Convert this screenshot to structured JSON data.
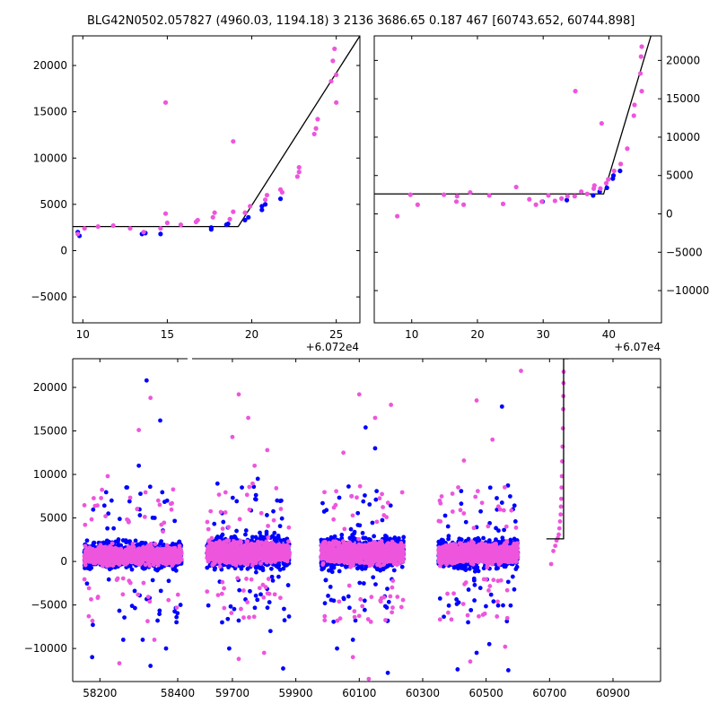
{
  "title": "BLG42N0502.057827 (4960.03, 1194.18)   3 2136 3686.65 0.187 467 [60743.652, 60744.898]",
  "colors": {
    "blue": "#0000ff",
    "pink": "#ee55dd",
    "model": "#000000"
  },
  "chart_data": [
    {
      "type": "scatter",
      "panel": "top-left",
      "xlim": [
        60729.4,
        60746.4
      ],
      "ylim": [
        -7800,
        23200
      ],
      "x_offset_label": "+6.072e4",
      "xticks": [
        60730,
        60735,
        60740,
        60745
      ],
      "xtick_labels": [
        "10",
        "15",
        "20",
        "25"
      ],
      "yticks": [
        -5000,
        0,
        5000,
        10000,
        15000,
        20000
      ],
      "ytick_labels": [
        "−5000",
        "0",
        "5000",
        "10000",
        "15000",
        "20000"
      ],
      "model_line": {
        "x": [
          60729.4,
          60739.2,
          60746.4
        ],
        "y": [
          2600,
          2600,
          23200
        ]
      },
      "series": [
        {
          "color": "blue",
          "points": [
            [
              60729.7,
              2000
            ],
            [
              60729.8,
              1600
            ],
            [
              60733.5,
              1800
            ],
            [
              60733.7,
              1900
            ],
            [
              60734.6,
              1800
            ],
            [
              60737.6,
              2300
            ],
            [
              60737.6,
              2500
            ],
            [
              60738.5,
              2800
            ],
            [
              60738.6,
              2900
            ],
            [
              60739.6,
              3300
            ],
            [
              60739.8,
              3600
            ],
            [
              60740.6,
              4800
            ],
            [
              60740.6,
              4400
            ],
            [
              60740.8,
              5000
            ],
            [
              60741.7,
              5600
            ]
          ]
        },
        {
          "color": "pink",
          "points": [
            [
              60729.7,
              1800
            ],
            [
              60730.1,
              2400
            ],
            [
              60730.9,
              2600
            ],
            [
              60731.8,
              2700
            ],
            [
              60732.8,
              2400
            ],
            [
              60733.6,
              2000
            ],
            [
              60734.6,
              2400
            ],
            [
              60734.9,
              16000
            ],
            [
              60734.9,
              4000
            ],
            [
              60735.0,
              3000
            ],
            [
              60735.8,
              2800
            ],
            [
              60736.7,
              3100
            ],
            [
              60736.8,
              3300
            ],
            [
              60737.7,
              3600
            ],
            [
              60737.8,
              4100
            ],
            [
              60738.7,
              3400
            ],
            [
              60738.9,
              11800
            ],
            [
              60738.9,
              4200
            ],
            [
              60739.6,
              4100
            ],
            [
              60739.9,
              4800
            ],
            [
              60740.8,
              5500
            ],
            [
              60740.9,
              6000
            ],
            [
              60741.7,
              6600
            ],
            [
              60741.8,
              6300
            ],
            [
              60742.7,
              8000
            ],
            [
              60742.8,
              9000
            ],
            [
              60742.8,
              8500
            ],
            [
              60743.7,
              12600
            ],
            [
              60743.8,
              13200
            ],
            [
              60743.9,
              14200
            ],
            [
              60744.7,
              18300
            ],
            [
              60744.8,
              20500
            ],
            [
              60744.9,
              21800
            ],
            [
              60745.0,
              16000
            ],
            [
              60745.0,
              19000
            ]
          ]
        }
      ]
    },
    {
      "type": "scatter",
      "panel": "top-right",
      "xlim": [
        60704.3,
        60748.0
      ],
      "ylim": [
        -14200,
        23200
      ],
      "x_offset_label": "+6.07e4",
      "xticks": [
        60710,
        60720,
        60730,
        60740
      ],
      "xtick_labels": [
        "10",
        "20",
        "30",
        "40"
      ],
      "yticks": [
        -10000,
        -5000,
        0,
        5000,
        10000,
        15000,
        20000
      ],
      "ytick_labels": [
        "−10000",
        "−5000",
        "0",
        "5000",
        "10000",
        "15000",
        "20000"
      ],
      "model_line": {
        "x": [
          60704.3,
          60739.2,
          60746.4
        ],
        "y": [
          2600,
          2600,
          23200
        ]
      },
      "series": [
        {
          "color": "blue",
          "points": [
            [
              60729.9,
              1600
            ],
            [
              60733.6,
              1800
            ],
            [
              60737.6,
              2400
            ],
            [
              60738.6,
              2900
            ],
            [
              60739.7,
              3400
            ],
            [
              60740.6,
              4600
            ],
            [
              60740.7,
              5000
            ],
            [
              60741.7,
              5600
            ]
          ]
        },
        {
          "color": "pink",
          "points": [
            [
              60707.8,
              -300
            ],
            [
              60709.8,
              2500
            ],
            [
              60710.9,
              1200
            ],
            [
              60714.9,
              2500
            ],
            [
              60716.8,
              1600
            ],
            [
              60716.9,
              2300
            ],
            [
              60717.9,
              1200
            ],
            [
              60718.9,
              2800
            ],
            [
              60721.8,
              2400
            ],
            [
              60723.9,
              1300
            ],
            [
              60725.9,
              3500
            ],
            [
              60727.9,
              1900
            ],
            [
              60728.9,
              1200
            ],
            [
              60729.8,
              1600
            ],
            [
              60730.8,
              2400
            ],
            [
              60731.8,
              1700
            ],
            [
              60732.8,
              2000
            ],
            [
              60733.7,
              2300
            ],
            [
              60734.8,
              2300
            ],
            [
              60734.9,
              16000
            ],
            [
              60735.8,
              2900
            ],
            [
              60736.7,
              2600
            ],
            [
              60737.7,
              3300
            ],
            [
              60737.8,
              3700
            ],
            [
              60738.7,
              3300
            ],
            [
              60738.9,
              11800
            ],
            [
              60739.6,
              4000
            ],
            [
              60739.9,
              4500
            ],
            [
              60740.8,
              5600
            ],
            [
              60741.8,
              6500
            ],
            [
              60742.8,
              8500
            ],
            [
              60743.8,
              12800
            ],
            [
              60743.9,
              14200
            ],
            [
              60744.8,
              18300
            ],
            [
              60744.9,
              20500
            ],
            [
              60745.0,
              21800
            ],
            [
              60745.0,
              16000
            ]
          ]
        }
      ]
    },
    {
      "type": "scatter",
      "panel": "bottom",
      "xlim": [
        58130,
        61050
      ],
      "ylim": [
        -13800,
        23300
      ],
      "broken_axis": {
        "x": 58430,
        "gap": 59570
      },
      "xticks": [
        58200,
        58400,
        59700,
        59900,
        60100,
        60300,
        60500,
        60700,
        60900
      ],
      "xtick_labels": [
        "58200",
        "58400",
        "59700",
        "59900",
        "60100",
        "60300",
        "60500",
        "60700",
        "60900"
      ],
      "yticks": [
        -10000,
        -5000,
        0,
        5000,
        10000,
        15000,
        20000
      ],
      "ytick_labels": [
        "−10000",
        "−5000",
        "0",
        "5000",
        "10000",
        "15000",
        "20000"
      ],
      "model_line": {
        "x": [
          60690,
          60744.2,
          60744.4,
          60760
        ],
        "y": [
          2600,
          2600,
          23300,
          23300
        ]
      },
      "seasons": [
        {
          "x0": 58160,
          "x1": 58410,
          "center": 700,
          "spread": 900
        },
        {
          "x0": 59620,
          "x1": 59880,
          "center": 1000,
          "spread": 1100
        },
        {
          "x0": 59980,
          "x1": 60240,
          "center": 1000,
          "spread": 1100
        },
        {
          "x0": 60350,
          "x1": 60600,
          "center": 900,
          "spread": 1000
        }
      ],
      "series": [
        {
          "color": "blue",
          "outliers": [
            [
              58320,
              20800
            ],
            [
              58355,
              16200
            ],
            [
              58300,
              11000
            ],
            [
              58230,
              7000
            ],
            [
              58270,
              8500
            ],
            [
              58180,
              -11000
            ],
            [
              58260,
              -9000
            ],
            [
              58330,
              -12000
            ],
            [
              58310,
              -9000
            ],
            [
              58370,
              -10000
            ],
            [
              59730,
              8500
            ],
            [
              59780,
              9500
            ],
            [
              59860,
              -12300
            ],
            [
              59820,
              -8000
            ],
            [
              59690,
              -10000
            ],
            [
              60120,
              15400
            ],
            [
              60150,
              13000
            ],
            [
              60080,
              -9000
            ],
            [
              60030,
              -10000
            ],
            [
              60190,
              -12800
            ],
            [
              60550,
              17800
            ],
            [
              60470,
              -10500
            ],
            [
              60410,
              -12400
            ],
            [
              60570,
              -12500
            ],
            [
              60510,
              -9500
            ]
          ]
        },
        {
          "color": "pink",
          "outliers": [
            [
              58330,
              18800
            ],
            [
              58300,
              15100
            ],
            [
              58220,
              9800
            ],
            [
              58350,
              7000
            ],
            [
              58250,
              -11700
            ],
            [
              58340,
              -9000
            ],
            [
              59720,
              19200
            ],
            [
              59700,
              14300
            ],
            [
              59750,
              16500
            ],
            [
              59770,
              11000
            ],
            [
              59810,
              12800
            ],
            [
              59720,
              -11200
            ],
            [
              59800,
              -10500
            ],
            [
              60100,
              19200
            ],
            [
              60150,
              16500
            ],
            [
              60200,
              18000
            ],
            [
              60050,
              12500
            ],
            [
              60130,
              -13500
            ],
            [
              60080,
              -11000
            ],
            [
              60470,
              18500
            ],
            [
              60430,
              11600
            ],
            [
              60520,
              14000
            ],
            [
              60450,
              -11500
            ],
            [
              60560,
              -9800
            ],
            [
              60610,
              21900
            ],
            [
              60705,
              -300
            ],
            [
              60712,
              1200
            ]
          ]
        }
      ],
      "rising_points": [
        [
          60718,
          1800
        ],
        [
          60722,
          2400
        ],
        [
          60726,
          2700
        ],
        [
          60729,
          3100
        ],
        [
          60731,
          3800
        ],
        [
          60733,
          4600
        ],
        [
          60735,
          5400
        ],
        [
          60736,
          6300
        ],
        [
          60737,
          7200
        ],
        [
          60738,
          8500
        ],
        [
          60739,
          9800
        ],
        [
          60740,
          11500
        ],
        [
          60741,
          13200
        ],
        [
          60742,
          15300
        ],
        [
          60743,
          17500
        ],
        [
          60743.5,
          19000
        ],
        [
          60744,
          20500
        ],
        [
          60744.5,
          21800
        ]
      ]
    }
  ]
}
